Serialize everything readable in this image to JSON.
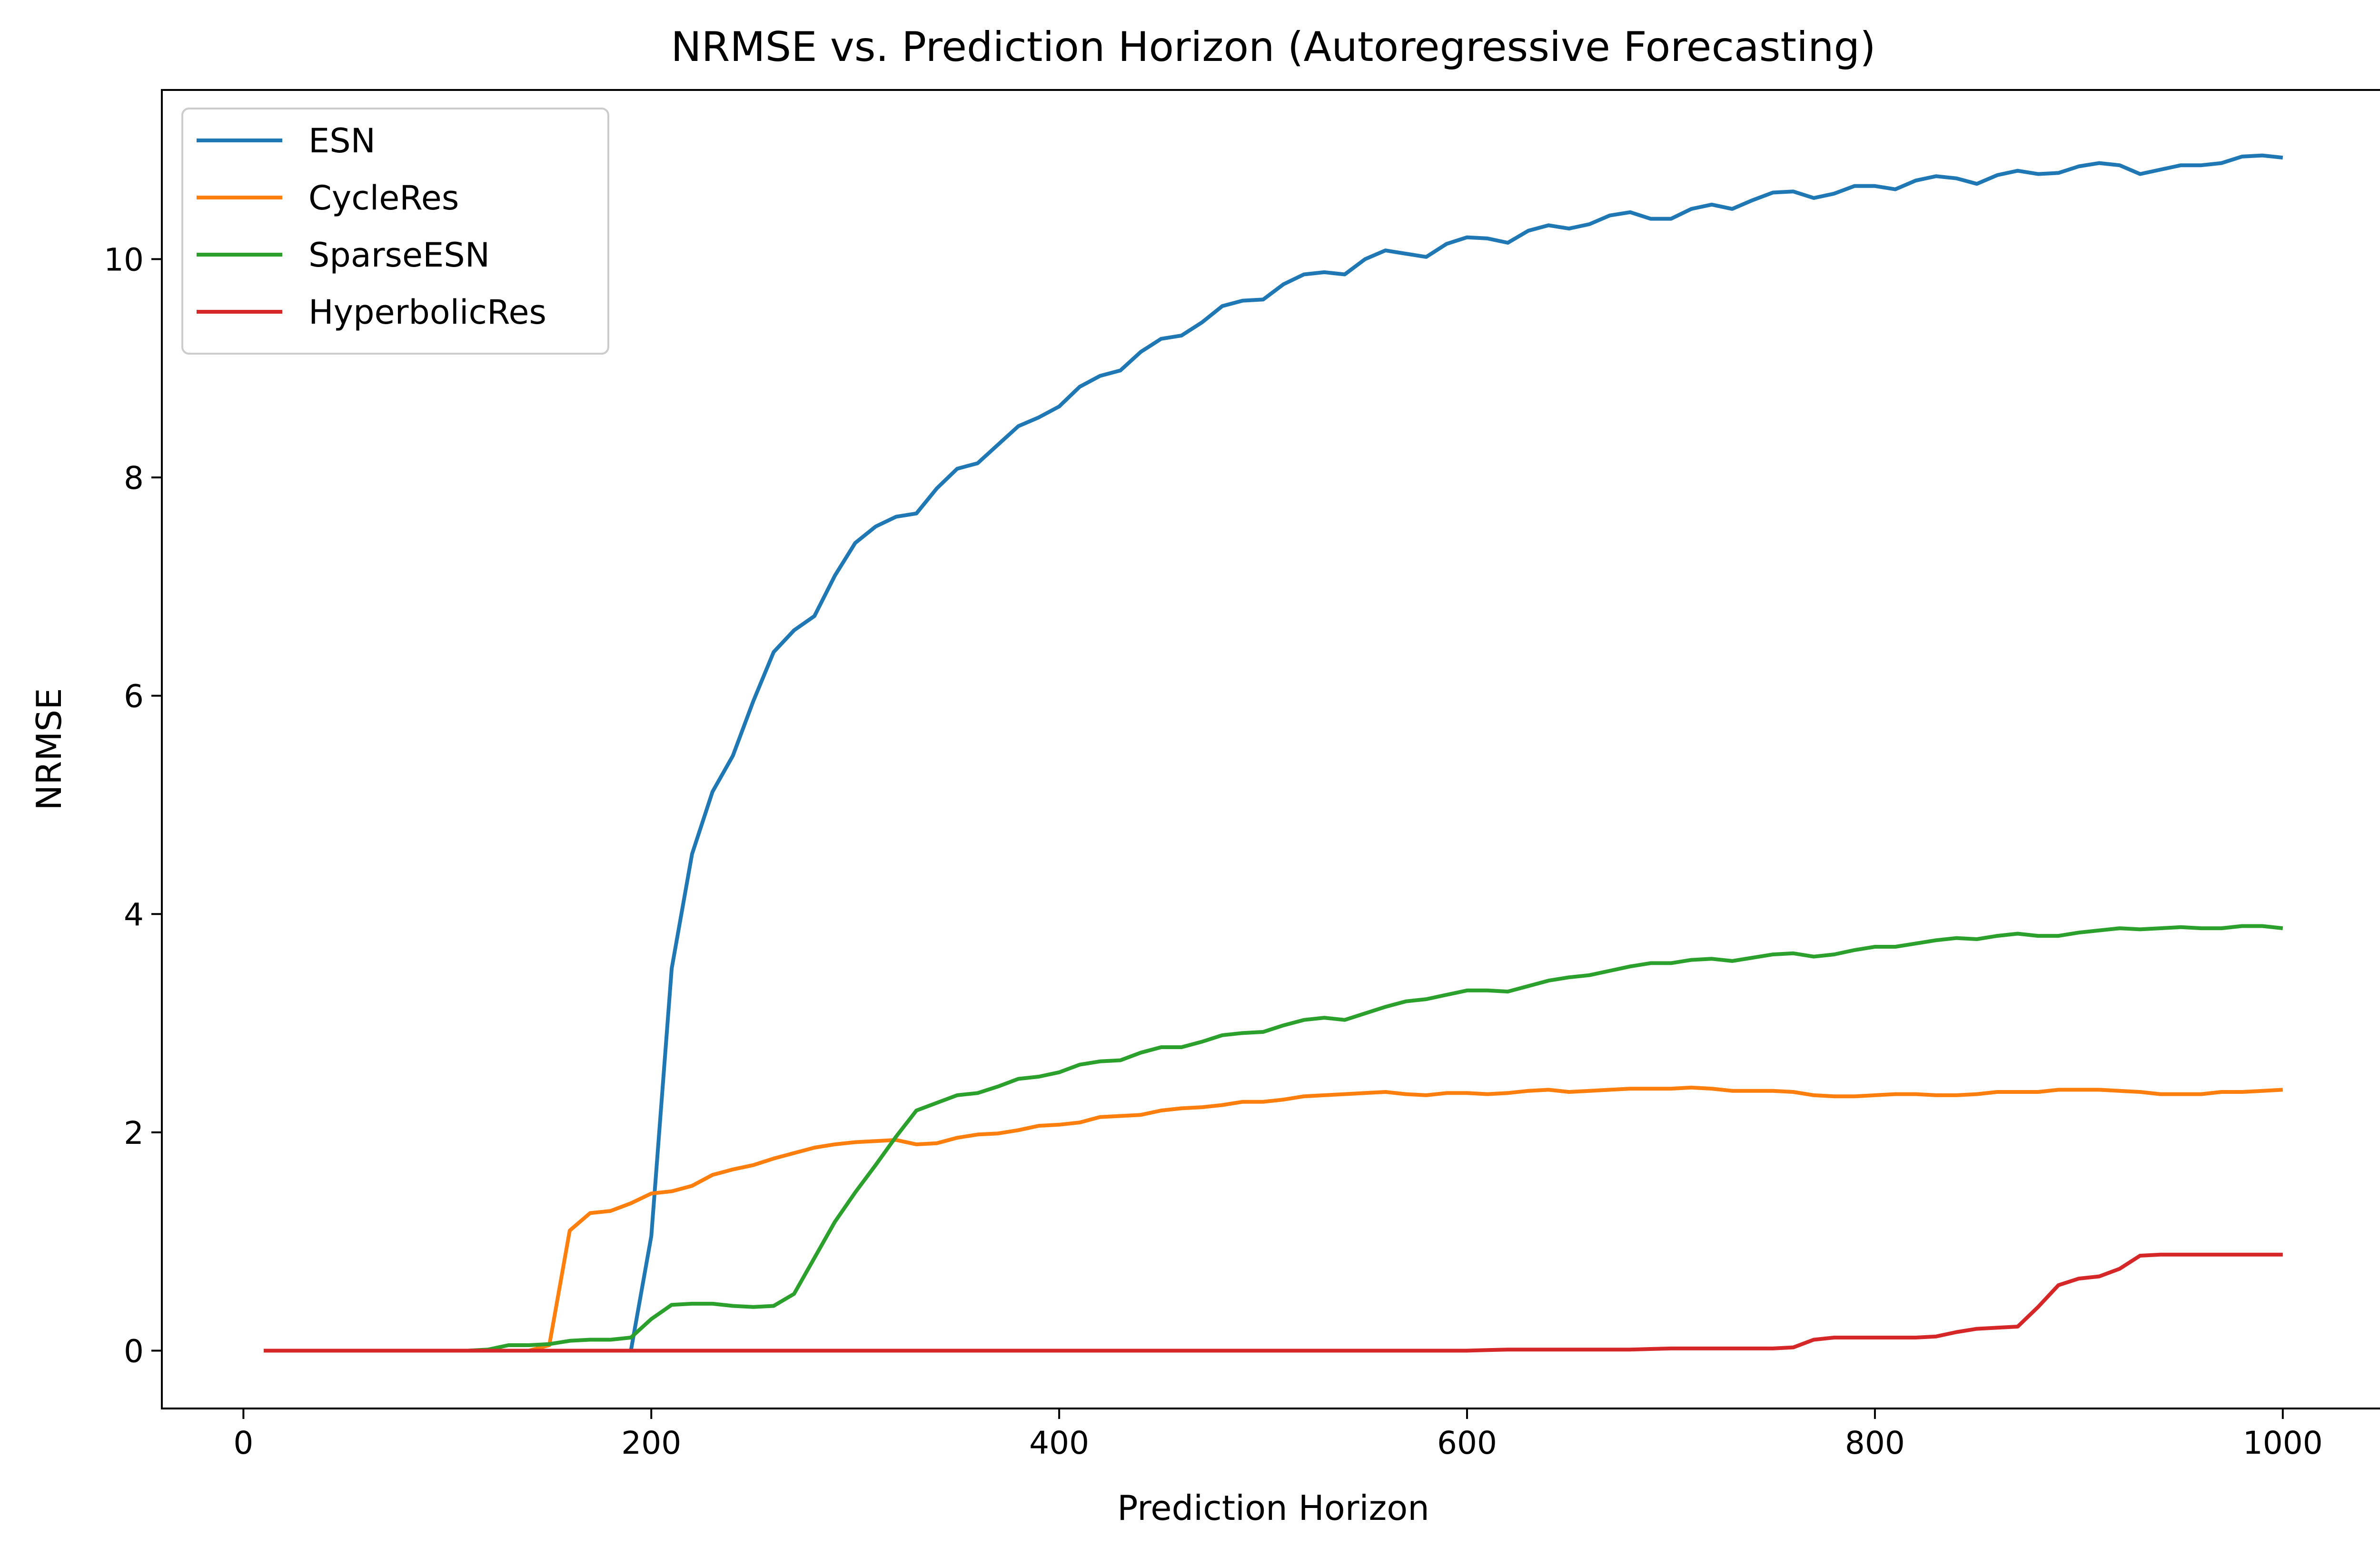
{
  "chart_data": {
    "type": "line",
    "title": "NRMSE vs. Prediction Horizon (Autoregressive Forecasting)",
    "xlabel": "Prediction Horizon",
    "ylabel": "NRMSE",
    "xlim": [
      -40,
      1050
    ],
    "ylim": [
      -0.53,
      11.55
    ],
    "xticks": [
      0,
      200,
      400,
      600,
      800,
      1000
    ],
    "yticks": [
      0,
      2,
      4,
      6,
      8,
      10
    ],
    "grid": false,
    "legend": "top-left",
    "x": [
      10,
      20,
      30,
      40,
      50,
      60,
      70,
      80,
      90,
      100,
      110,
      120,
      130,
      140,
      150,
      160,
      170,
      180,
      190,
      200,
      210,
      220,
      230,
      240,
      250,
      260,
      270,
      280,
      290,
      300,
      310,
      320,
      330,
      340,
      350,
      360,
      370,
      380,
      390,
      400,
      410,
      420,
      430,
      440,
      450,
      460,
      470,
      480,
      490,
      500,
      510,
      520,
      530,
      540,
      550,
      560,
      570,
      580,
      590,
      600,
      610,
      620,
      630,
      640,
      650,
      660,
      670,
      680,
      690,
      700,
      710,
      720,
      730,
      740,
      750,
      760,
      770,
      780,
      790,
      800,
      810,
      820,
      830,
      840,
      850,
      860,
      870,
      880,
      890,
      900,
      910,
      920,
      930,
      940,
      950,
      960,
      970,
      980,
      990,
      1000
    ],
    "series": [
      {
        "name": "ESN",
        "color": "#1f77b4",
        "values": [
          0,
          0,
          0,
          0,
          0,
          0,
          0,
          0,
          0,
          0,
          0,
          0,
          0,
          0,
          0,
          0,
          0,
          0,
          0,
          1.05,
          3.5,
          4.55,
          5.12,
          5.45,
          5.95,
          6.4,
          6.6,
          6.73,
          7.1,
          7.4,
          7.55,
          7.64,
          7.67,
          7.9,
          8.08,
          8.13,
          8.3,
          8.47,
          8.55,
          8.65,
          8.83,
          8.93,
          8.98,
          9.15,
          9.27,
          9.3,
          9.42,
          9.57,
          9.62,
          9.63,
          9.77,
          9.86,
          9.88,
          9.86,
          10.0,
          10.08,
          10.05,
          10.02,
          10.14,
          10.2,
          10.19,
          10.15,
          10.26,
          10.31,
          10.28,
          10.32,
          10.4,
          10.43,
          10.37,
          10.37,
          10.46,
          10.5,
          10.46,
          10.54,
          10.61,
          10.62,
          10.56,
          10.6,
          10.67,
          10.67,
          10.64,
          10.72,
          10.76,
          10.74,
          10.69,
          10.77,
          10.81,
          10.78,
          10.79,
          10.85,
          10.88,
          10.86,
          10.78,
          10.82,
          10.86,
          10.86,
          10.88,
          10.94,
          10.95,
          10.93
        ]
      },
      {
        "name": "CycleRes",
        "color": "#ff7f0e",
        "values": [
          0,
          0,
          0,
          0,
          0,
          0,
          0,
          0,
          0,
          0,
          0,
          0,
          0,
          0,
          0.05,
          1.1,
          1.26,
          1.28,
          1.35,
          1.44,
          1.46,
          1.51,
          1.61,
          1.66,
          1.7,
          1.76,
          1.81,
          1.86,
          1.89,
          1.91,
          1.92,
          1.93,
          1.89,
          1.9,
          1.95,
          1.98,
          1.99,
          2.02,
          2.06,
          2.07,
          2.09,
          2.14,
          2.15,
          2.16,
          2.2,
          2.22,
          2.23,
          2.25,
          2.28,
          2.28,
          2.3,
          2.33,
          2.34,
          2.35,
          2.36,
          2.37,
          2.35,
          2.34,
          2.36,
          2.36,
          2.35,
          2.36,
          2.38,
          2.39,
          2.37,
          2.38,
          2.39,
          2.4,
          2.4,
          2.4,
          2.41,
          2.4,
          2.38,
          2.38,
          2.38,
          2.37,
          2.34,
          2.33,
          2.33,
          2.34,
          2.35,
          2.35,
          2.34,
          2.34,
          2.35,
          2.37,
          2.37,
          2.37,
          2.39,
          2.39,
          2.39,
          2.38,
          2.37,
          2.35,
          2.35,
          2.35,
          2.37,
          2.37,
          2.38,
          2.39
        ]
      },
      {
        "name": "SparseESN",
        "color": "#2ca02c",
        "values": [
          0,
          0,
          0,
          0,
          0,
          0,
          0,
          0,
          0,
          0,
          0,
          0.01,
          0.05,
          0.05,
          0.06,
          0.09,
          0.1,
          0.1,
          0.12,
          0.29,
          0.42,
          0.43,
          0.43,
          0.41,
          0.4,
          0.41,
          0.52,
          0.85,
          1.18,
          1.45,
          1.7,
          1.96,
          2.2,
          2.27,
          2.34,
          2.36,
          2.42,
          2.49,
          2.51,
          2.55,
          2.62,
          2.65,
          2.66,
          2.73,
          2.78,
          2.78,
          2.83,
          2.89,
          2.91,
          2.92,
          2.98,
          3.03,
          3.05,
          3.03,
          3.09,
          3.15,
          3.2,
          3.22,
          3.26,
          3.3,
          3.3,
          3.29,
          3.34,
          3.39,
          3.42,
          3.44,
          3.48,
          3.52,
          3.55,
          3.55,
          3.58,
          3.59,
          3.57,
          3.6,
          3.63,
          3.64,
          3.61,
          3.63,
          3.67,
          3.7,
          3.7,
          3.73,
          3.76,
          3.78,
          3.77,
          3.8,
          3.82,
          3.8,
          3.8,
          3.83,
          3.85,
          3.87,
          3.86,
          3.87,
          3.88,
          3.87,
          3.87,
          3.89,
          3.89,
          3.87
        ]
      },
      {
        "name": "HyperbolicRes",
        "color": "#d62728",
        "values": [
          0,
          0,
          0,
          0,
          0,
          0,
          0,
          0,
          0,
          0,
          0,
          0,
          0,
          0,
          0,
          0,
          0,
          0,
          0,
          0,
          0,
          0,
          0,
          0,
          0,
          0,
          0,
          0,
          0,
          0,
          0,
          0,
          0,
          0,
          0,
          0,
          0,
          0,
          0,
          0,
          0,
          0,
          0,
          0,
          0,
          0,
          0,
          0,
          0,
          0,
          0,
          0,
          0,
          0,
          0,
          0,
          0,
          0,
          0,
          0,
          0.005,
          0.01,
          0.01,
          0.01,
          0.01,
          0.01,
          0.01,
          0.01,
          0.015,
          0.02,
          0.02,
          0.02,
          0.02,
          0.02,
          0.02,
          0.03,
          0.1,
          0.12,
          0.12,
          0.12,
          0.12,
          0.12,
          0.13,
          0.17,
          0.2,
          0.21,
          0.22,
          0.4,
          0.6,
          0.66,
          0.68,
          0.75,
          0.87,
          0.88,
          0.88,
          0.88,
          0.88,
          0.88,
          0.88,
          0.88
        ]
      }
    ]
  }
}
